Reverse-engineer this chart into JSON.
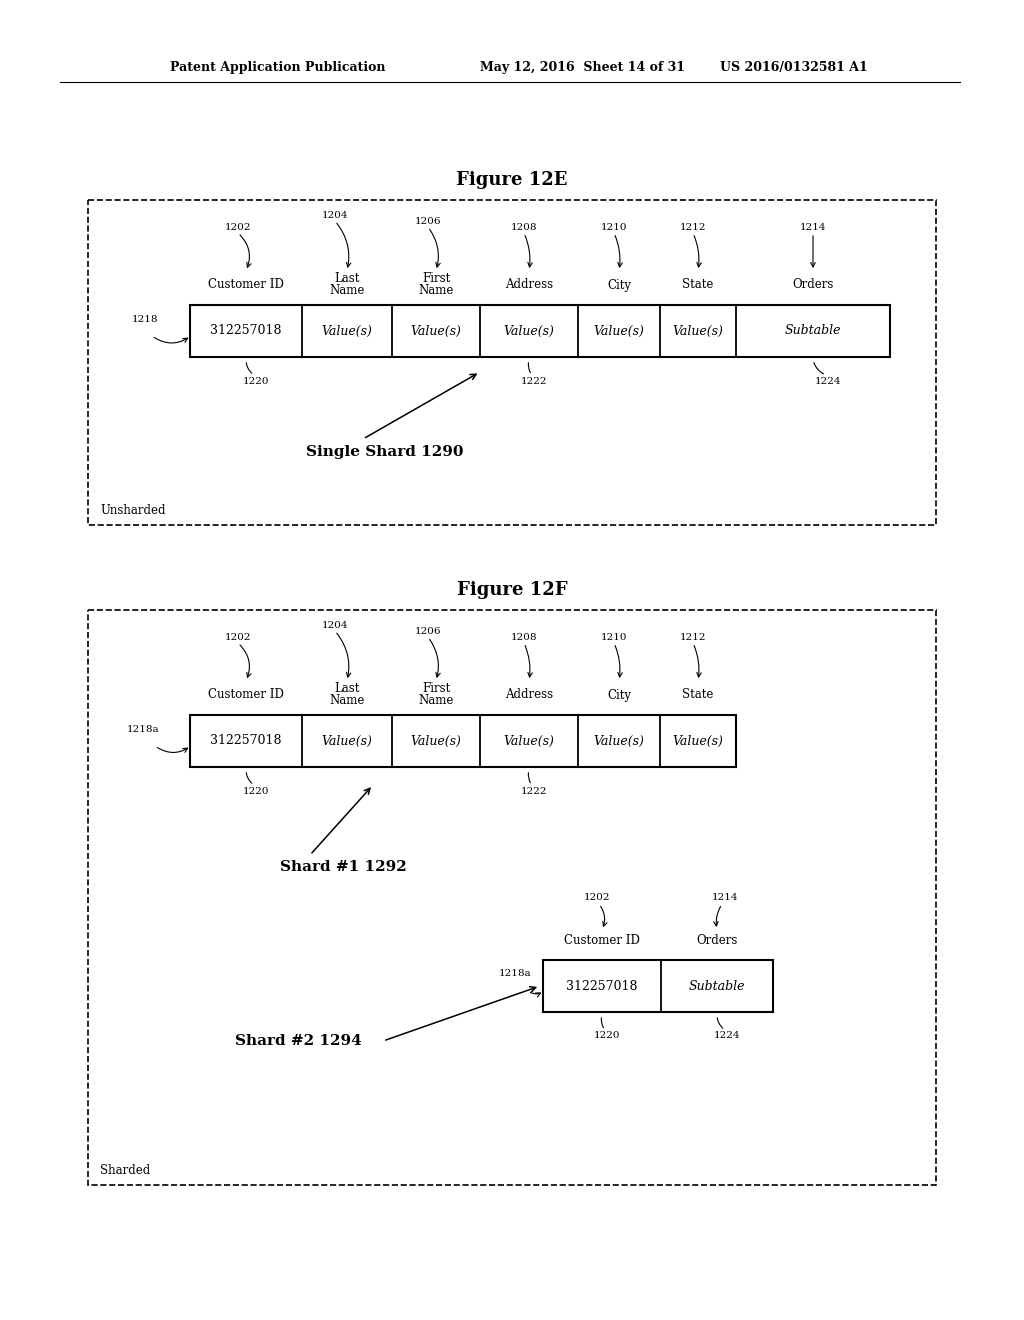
{
  "bg_color": "#ffffff",
  "header_text_left": "Patent Application Publication",
  "header_text_mid": "May 12, 2016  Sheet 14 of 31",
  "header_text_right": "US 2016/0132581 A1",
  "fig12e_title": "Figure 12E",
  "fig12f_title": "Figure 12F",
  "fig12e_label": "Unsharded",
  "fig12f_label": "Sharded",
  "fig12e_shard_label": "Single Shard 1290",
  "shard1_label": "Shard #1 1292",
  "shard2_label": "Shard #2 1294",
  "row1_vals": [
    "312257018",
    "Value(s)",
    "Value(s)",
    "Value(s)",
    "Value(s)",
    "Value(s)",
    "Subtable"
  ],
  "row1_headers": [
    "Customer ID",
    "Last\nName",
    "First\nName",
    "Address",
    "City",
    "State",
    "Orders"
  ],
  "row1_ids": [
    "1202",
    "1204",
    "1206",
    "1208",
    "1210",
    "1212",
    "1214"
  ],
  "row2_vals": [
    "312257018",
    "Value(s)",
    "Value(s)",
    "Value(s)",
    "Value(s)",
    "Value(s)"
  ],
  "row2_headers": [
    "Customer ID",
    "Last\nName",
    "First\nName",
    "Address",
    "City",
    "State"
  ],
  "row2_ids": [
    "1202",
    "1204",
    "1206",
    "1208",
    "1210",
    "1212"
  ],
  "row3_vals": [
    "312257018",
    "Subtable"
  ],
  "row3_headers": [
    "Customer ID",
    "Orders"
  ],
  "row3_ids": [
    "1202",
    "1214"
  ]
}
